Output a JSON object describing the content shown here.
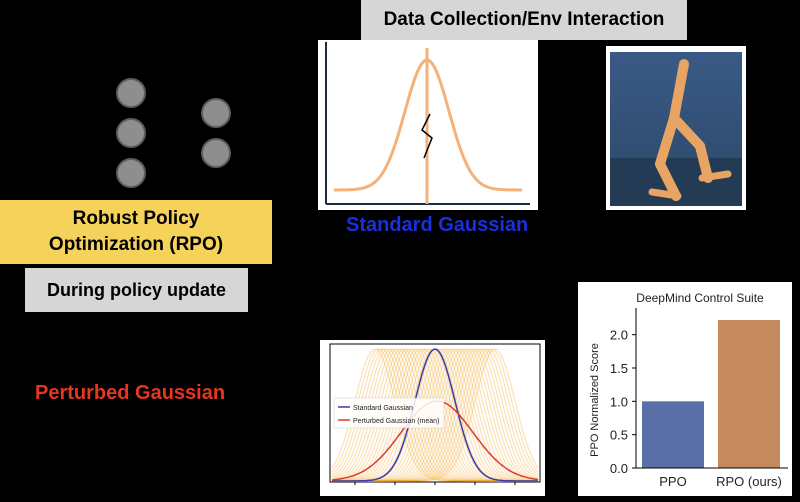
{
  "top_box": {
    "label": "Data Collection/Env Interaction"
  },
  "rpo_box": {
    "line1": "Robust Policy",
    "line2": "Optimization (RPO)"
  },
  "update_box": {
    "label": "During policy update"
  },
  "labels": {
    "standard_gaussian": "Standard Gaussian",
    "perturbed_gaussian": "Perturbed Gaussian"
  },
  "gaussian_plot": {
    "legend": [
      "Standard Gaussian",
      "Perturbed Gaussian (mean)"
    ],
    "colors": {
      "standard": "#3b3bb0",
      "perturbed": "#e03a2a",
      "samples": "#f3a92e"
    }
  },
  "chart_data": {
    "type": "bar",
    "title": "DeepMind Control Suite",
    "xlabel": "",
    "ylabel": "PPO Normalized Score",
    "categories": [
      "PPO",
      "RPO (ours)"
    ],
    "values": [
      1.0,
      2.22
    ],
    "colors": [
      "#5a6fa6",
      "#c4895f"
    ],
    "ylim": [
      0,
      2.4
    ],
    "yticks": [
      "0.0",
      "0.5",
      "1.0",
      "1.5",
      "2.0"
    ],
    "ytick_values": [
      0,
      0.5,
      1.0,
      1.5,
      2.0
    ],
    "grid": false
  }
}
